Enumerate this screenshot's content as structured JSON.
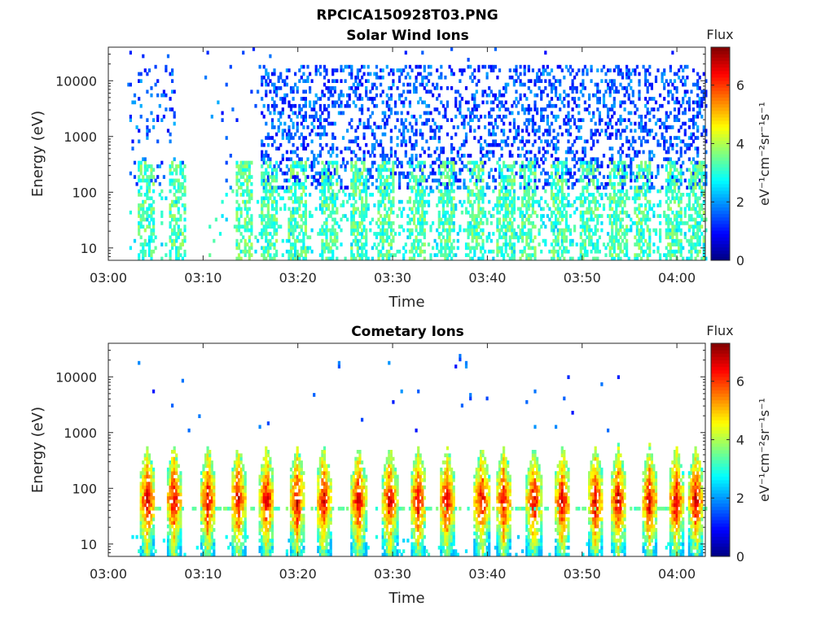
{
  "figure": {
    "title": "RPCICA150928T03.PNG"
  },
  "chart_data": [
    {
      "type": "heatmap",
      "title": "Solar Wind Ions",
      "xlabel": "Time",
      "ylabel": "Energy (eV)",
      "x_ticks": [
        "03:00",
        "03:10",
        "03:20",
        "03:30",
        "03:40",
        "03:50",
        "04:00"
      ],
      "y_ticks": [
        "10",
        "100",
        "1000",
        "10000"
      ],
      "y_scale": "log",
      "xlim": [
        "03:00",
        "04:03"
      ],
      "ylim": [
        6,
        40000
      ],
      "colorbar": {
        "label": "Flux",
        "unit": "eV⁻¹cm⁻²sr⁻¹s⁻¹",
        "ticks": [
          "0",
          "2",
          "4",
          "6"
        ],
        "range": [
          0,
          7.3
        ],
        "colormap": "jet"
      },
      "data_gaps": [
        [
          "03:08",
          "03:10"
        ]
      ],
      "pattern": "sparse low-flux ions (values ~1-2) spread 100-20000 eV after 03:16, plus intermittent bursts at 10-300 eV (values ~2.5-4)",
      "bursts_min": [
        3.8,
        7.2,
        14.2,
        16.8,
        19.8,
        23.3,
        26.3,
        29.2,
        32.5,
        35.5,
        38.7,
        41.8,
        44.2,
        47.4,
        50.6,
        53.7,
        56.2,
        59.5,
        61.9
      ]
    },
    {
      "type": "heatmap",
      "title": "Cometary Ions",
      "xlabel": "Time",
      "ylabel": "Energy (eV)",
      "x_ticks": [
        "03:00",
        "03:10",
        "03:20",
        "03:30",
        "03:40",
        "03:50",
        "04:00"
      ],
      "y_ticks": [
        "10",
        "100",
        "1000",
        "10000"
      ],
      "y_scale": "log",
      "xlim": [
        "03:00",
        "04:03"
      ],
      "ylim": [
        6,
        40000
      ],
      "colorbar": {
        "label": "Flux",
        "unit": "eV⁻¹cm⁻²sr⁻¹s⁻¹",
        "ticks": [
          "0",
          "2",
          "4",
          "6"
        ],
        "range": [
          0,
          7.3
        ],
        "colormap": "jet"
      },
      "pattern": "periodic bursts between 6 and ~500 eV peaking near 40-100 eV (values up to ~6.5), a steady band near 40 eV, and scattered high-energy counts above 1000 eV",
      "bursts_min": [
        4.0,
        6.8,
        10.4,
        13.6,
        16.6,
        19.8,
        22.6,
        26.3,
        29.6,
        32.6,
        35.6,
        39.3,
        41.6,
        44.8,
        47.8,
        51.3,
        53.7,
        57.0,
        59.8,
        61.9
      ]
    }
  ]
}
